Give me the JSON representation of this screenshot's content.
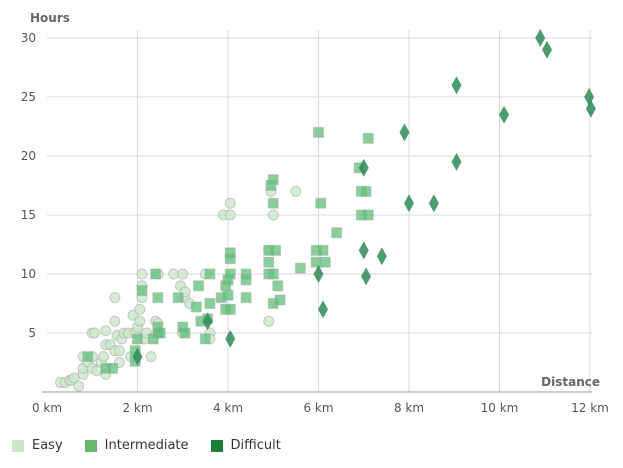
{
  "chart_data": {
    "type": "scatter",
    "xlabel": "Distance",
    "ylabel": "Hours",
    "xlim": [
      0,
      12
    ],
    "ylim": [
      0,
      30
    ],
    "x_ticks": [
      0,
      2,
      4,
      6,
      8,
      10,
      12
    ],
    "x_tick_labels": [
      "0 km",
      "2 km",
      "4 km",
      "6 km",
      "8 km",
      "10 km",
      "12 km"
    ],
    "y_ticks": [
      5,
      10,
      15,
      20,
      25,
      30
    ],
    "y_tick_labels": [
      "5",
      "10",
      "15",
      "20",
      "25",
      "30"
    ],
    "grid": true,
    "legend_position": "bottom-left",
    "series": [
      {
        "name": "Easy",
        "marker": "circle",
        "color": "#cbe8cb",
        "points": [
          [
            0.3,
            0.8
          ],
          [
            0.4,
            0.8
          ],
          [
            0.5,
            1
          ],
          [
            0.55,
            1
          ],
          [
            0.6,
            1.2
          ],
          [
            0.7,
            0.5
          ],
          [
            0.8,
            1.5
          ],
          [
            0.8,
            2
          ],
          [
            0.8,
            3
          ],
          [
            0.9,
            2.5
          ],
          [
            1.0,
            2
          ],
          [
            1.0,
            3
          ],
          [
            1.0,
            5
          ],
          [
            1.05,
            5
          ],
          [
            1.1,
            1.8
          ],
          [
            1.2,
            2.5
          ],
          [
            1.25,
            3
          ],
          [
            1.3,
            1.5
          ],
          [
            1.3,
            4
          ],
          [
            1.3,
            5.2
          ],
          [
            1.4,
            4
          ],
          [
            1.5,
            8
          ],
          [
            1.5,
            6
          ],
          [
            1.55,
            4.8
          ],
          [
            1.5,
            3.5
          ],
          [
            1.6,
            3.5
          ],
          [
            1.65,
            4.5
          ],
          [
            1.7,
            5
          ],
          [
            1.6,
            2.5
          ],
          [
            1.8,
            5
          ],
          [
            1.85,
            3
          ],
          [
            1.9,
            6.5
          ],
          [
            1.95,
            5
          ],
          [
            2.0,
            5.5
          ],
          [
            2.05,
            6
          ],
          [
            2.1,
            10
          ],
          [
            2.1,
            9
          ],
          [
            2.1,
            8
          ],
          [
            2.05,
            7
          ],
          [
            2.15,
            4.5
          ],
          [
            2.2,
            5
          ],
          [
            2.3,
            3
          ],
          [
            2.4,
            6
          ],
          [
            2.45,
            10
          ],
          [
            2.45,
            5.8
          ],
          [
            2.8,
            10
          ],
          [
            2.95,
            9
          ],
          [
            3.0,
            10
          ],
          [
            3.05,
            8
          ],
          [
            3.05,
            8.5
          ],
          [
            3.0,
            5
          ],
          [
            3.15,
            7.5
          ],
          [
            3.5,
            10
          ],
          [
            3.6,
            5
          ],
          [
            3.6,
            4.5
          ],
          [
            3.9,
            15
          ],
          [
            4.05,
            16
          ],
          [
            4.05,
            15
          ],
          [
            4.9,
            12
          ],
          [
            4.9,
            6
          ],
          [
            4.95,
            17
          ],
          [
            5.0,
            15
          ],
          [
            5.5,
            17
          ]
        ]
      },
      {
        "name": "Intermediate",
        "marker": "square",
        "color": "#5fbf78",
        "points": [
          [
            0.9,
            3
          ],
          [
            1.3,
            2
          ],
          [
            1.45,
            2
          ],
          [
            1.95,
            2.6
          ],
          [
            1.95,
            3.5
          ],
          [
            2.0,
            4.5
          ],
          [
            2.1,
            8.6
          ],
          [
            2.4,
            10
          ],
          [
            2.45,
            8
          ],
          [
            2.45,
            5.5
          ],
          [
            2.45,
            5
          ],
          [
            2.5,
            5
          ],
          [
            2.35,
            4.5
          ],
          [
            2.9,
            8
          ],
          [
            3.0,
            5.5
          ],
          [
            3.05,
            5
          ],
          [
            3.3,
            7.2
          ],
          [
            3.35,
            9
          ],
          [
            3.4,
            6
          ],
          [
            3.5,
            4.5
          ],
          [
            3.55,
            6.2
          ],
          [
            3.6,
            7.5
          ],
          [
            3.6,
            10
          ],
          [
            3.85,
            8
          ],
          [
            3.95,
            9
          ],
          [
            3.95,
            7
          ],
          [
            4.0,
            9.5
          ],
          [
            4.0,
            8.2
          ],
          [
            4.05,
            11.8
          ],
          [
            4.05,
            11.3
          ],
          [
            4.05,
            10
          ],
          [
            4.05,
            7
          ],
          [
            4.4,
            10
          ],
          [
            4.4,
            9.5
          ],
          [
            4.4,
            8
          ],
          [
            4.9,
            12
          ],
          [
            4.9,
            11
          ],
          [
            4.9,
            10
          ],
          [
            4.95,
            17.5
          ],
          [
            5.0,
            18
          ],
          [
            5.0,
            16
          ],
          [
            5.0,
            10
          ],
          [
            5.0,
            7.5
          ],
          [
            5.05,
            12
          ],
          [
            5.1,
            9
          ],
          [
            5.15,
            7.8
          ],
          [
            5.6,
            10.5
          ],
          [
            5.95,
            12
          ],
          [
            5.95,
            11
          ],
          [
            6.0,
            22
          ],
          [
            6.05,
            16
          ],
          [
            6.1,
            12
          ],
          [
            6.15,
            11
          ],
          [
            6.4,
            13.5
          ],
          [
            6.9,
            19
          ],
          [
            6.95,
            17
          ],
          [
            6.95,
            15
          ],
          [
            7.05,
            17
          ],
          [
            7.1,
            21.5
          ],
          [
            7.1,
            15
          ]
        ]
      },
      {
        "name": "Difficult",
        "marker": "diamond",
        "color": "#2e8b57",
        "points": [
          [
            2.0,
            3
          ],
          [
            3.55,
            6
          ],
          [
            4.05,
            4.5
          ],
          [
            6.0,
            10
          ],
          [
            6.1,
            7
          ],
          [
            7.0,
            19
          ],
          [
            7.0,
            12
          ],
          [
            7.05,
            9.8
          ],
          [
            7.4,
            11.5
          ],
          [
            7.9,
            22
          ],
          [
            8.0,
            16
          ],
          [
            8.55,
            16
          ],
          [
            9.05,
            19.5
          ],
          [
            9.05,
            26
          ],
          [
            10.1,
            23.5
          ],
          [
            10.9,
            30
          ],
          [
            11.05,
            29
          ],
          [
            11.98,
            25
          ],
          [
            12.02,
            24
          ]
        ]
      }
    ]
  },
  "legend": {
    "items": [
      {
        "label": "Easy",
        "color": "#c8e6c9"
      },
      {
        "label": "Intermediate",
        "color": "#66bb6a"
      },
      {
        "label": "Difficult",
        "color": "#1e7d3a"
      }
    ]
  }
}
